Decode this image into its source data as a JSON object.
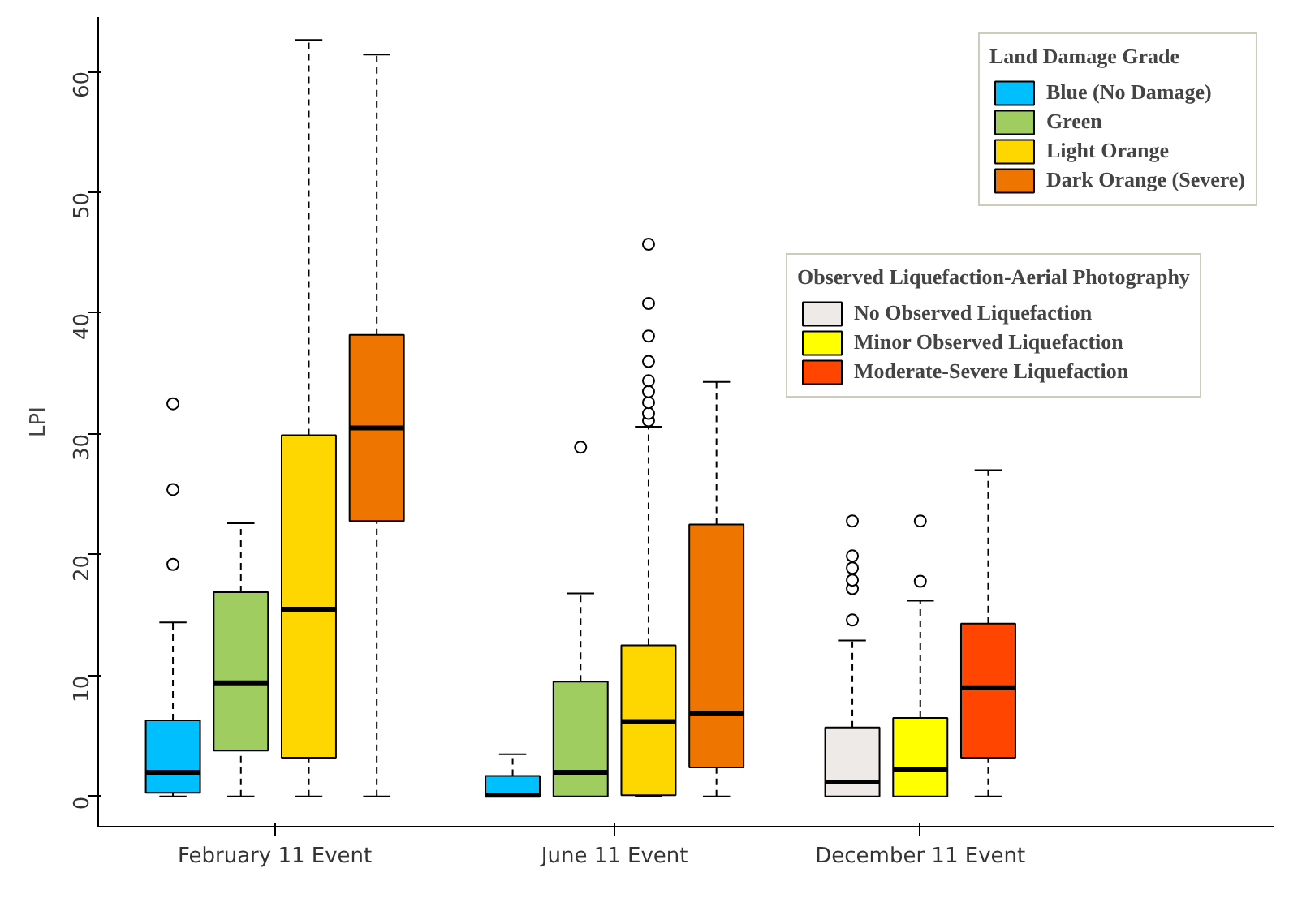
{
  "chart_data": {
    "type": "box",
    "ylabel": "LPI",
    "legend_title": "Land Damage Grade",
    "legend": "top right",
    "grid": false,
    "marker": "circle",
    "categories": [
      "February 11 Event",
      "June 11 Event",
      "December 11 Event"
    ],
    "ylim": [
      -2.5,
      64.5
    ],
    "yticks": [
      0,
      10,
      20,
      30,
      40,
      50,
      60
    ],
    "annotations": [
      "Observed Liquefaction-Aerial Photography"
    ],
    "series": [
      {
        "name": "Blue (No Damage)",
        "color": "#00bfff",
        "boxes": [
          {
            "low": 0,
            "q1": 0.3,
            "median": 2.0,
            "q3": 6.3,
            "high": 14.4,
            "outliers": [
              19.2,
              25.4,
              32.5
            ]
          },
          {
            "low": 0,
            "q1": 0,
            "median": 0.1,
            "q3": 1.7,
            "high": 3.5
          },
          null
        ]
      },
      {
        "name": "Green",
        "color": "#9fcd5f",
        "boxes": [
          {
            "low": 0,
            "q1": 3.8,
            "median": 9.4,
            "q3": 16.9,
            "high": 22.6
          },
          {
            "low": 0,
            "q1": 0,
            "median": 2.0,
            "q3": 9.5,
            "high": 16.8,
            "outliers": [
              28.9
            ]
          },
          null
        ]
      },
      {
        "name": "Light Orange",
        "color": "#ffd700",
        "boxes": [
          {
            "low": 0,
            "q1": 3.2,
            "median": 15.5,
            "q3": 29.9,
            "high": 62.6
          },
          {
            "low": 0,
            "q1": 0.1,
            "median": 6.2,
            "q3": 12.5,
            "high": 30.6,
            "outliers": [
              31.1,
              31.7,
              32.6,
              33.5,
              34.4,
              36.0,
              38.1,
              40.8,
              45.7
            ]
          },
          null
        ]
      },
      {
        "name": "Dark Orange (Severe)",
        "color": "#ee7600",
        "boxes": [
          {
            "low": 0,
            "q1": 22.8,
            "median": 30.5,
            "q3": 38.2,
            "high": 61.4
          },
          {
            "low": 0,
            "q1": 2.4,
            "median": 6.9,
            "q3": 22.5,
            "high": 34.3
          },
          null
        ]
      },
      {
        "name": "No Observed Liquefaction",
        "color": "#eeeae8",
        "boxes": [
          null,
          null,
          {
            "low": 0,
            "q1": 0,
            "median": 1.2,
            "q3": 5.7,
            "high": 12.9,
            "outliers": [
              14.6,
              17.2,
              17.9,
              18.9,
              19.9,
              22.8
            ]
          }
        ]
      },
      {
        "name": "Minor Observed Liquefaction",
        "color": "#ffff00",
        "boxes": [
          null,
          null,
          {
            "low": 0,
            "q1": 0,
            "median": 2.2,
            "q3": 6.5,
            "high": 16.2,
            "outliers": [
              17.8,
              22.8
            ]
          }
        ]
      },
      {
        "name": "Moderate-Severe Liquefaction",
        "color": "#ff4500",
        "boxes": [
          null,
          null,
          {
            "low": 0,
            "q1": 3.2,
            "median": 9.0,
            "q3": 14.3,
            "high": 27.0
          }
        ]
      }
    ]
  }
}
